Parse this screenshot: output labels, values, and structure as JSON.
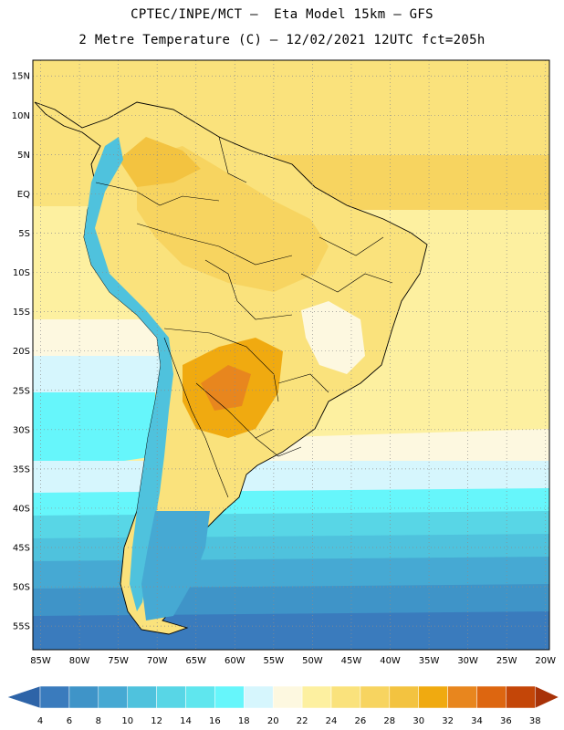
{
  "header": {
    "title_line1": "CPTEC/INPE/MCT –  Eta Model 15km – GFS",
    "title_line2": "2 Metre Temperature (C) – 12/02/2021 12UTC fct=205h"
  },
  "map": {
    "lat_labels": [
      "15N",
      "10N",
      "5N",
      "EQ",
      "5S",
      "10S",
      "15S",
      "20S",
      "25S",
      "30S",
      "35S",
      "40S",
      "45S",
      "50S",
      "55S"
    ],
    "lon_labels": [
      "85W",
      "80W",
      "75W",
      "70W",
      "65W",
      "60W",
      "55W",
      "50W",
      "45W",
      "40W",
      "35W",
      "30W",
      "25W",
      "20W"
    ],
    "lat_values": [
      15,
      10,
      5,
      0,
      -5,
      -10,
      -15,
      -20,
      -25,
      -30,
      -35,
      -40,
      -45,
      -50,
      -55
    ],
    "lon_values": [
      -85,
      -80,
      -75,
      -70,
      -65,
      -60,
      -55,
      -50,
      -45,
      -40,
      -35,
      -30,
      -25,
      -20
    ],
    "extent": {
      "lon_min": -86,
      "lon_max": -19.5,
      "lat_min": -58,
      "lat_max": 17
    }
  },
  "legend": {
    "values": [
      "4",
      "6",
      "8",
      "10",
      "12",
      "14",
      "16",
      "18",
      "20",
      "22",
      "24",
      "26",
      "28",
      "30",
      "32",
      "34",
      "36",
      "38"
    ],
    "colors": [
      "#2e64a8",
      "#3a7bbd",
      "#3f94c8",
      "#46a9d3",
      "#4fc2dd",
      "#58d6e6",
      "#5fe6ee",
      "#66f6fb",
      "#d6f6fd",
      "#fdf8e0",
      "#fdf0a0",
      "#fae27c",
      "#f7d460",
      "#f3c340",
      "#f0aa10",
      "#e8861e",
      "#dd6610",
      "#c44608",
      "#a83208"
    ]
  }
}
